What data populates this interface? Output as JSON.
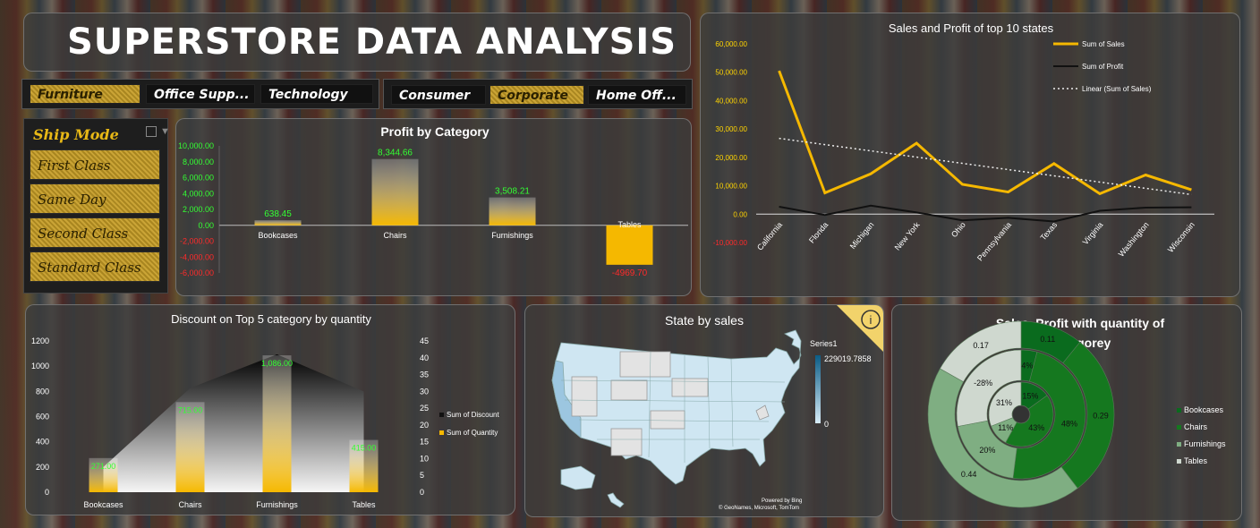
{
  "header": {
    "title": "SUPERSTORE DATA ANALYSIS"
  },
  "category_slicer": {
    "items": [
      {
        "label": "Furniture",
        "selected": true
      },
      {
        "label": "Office Supp...",
        "selected": false
      },
      {
        "label": "Technology",
        "selected": false
      }
    ]
  },
  "segment_slicer": {
    "items": [
      {
        "label": "Consumer",
        "selected": false
      },
      {
        "label": "Corporate",
        "selected": true
      },
      {
        "label": "Home Off...",
        "selected": false
      }
    ]
  },
  "ship_mode_slicer": {
    "title": "Ship Mode",
    "items": [
      "First Class",
      "Same Day",
      "Second Class",
      "Standard Class"
    ]
  },
  "colors": {
    "gold": "#f5b800",
    "bar_green_label": "#33ff33",
    "neg_red": "#ff2a2a",
    "dark_green": "#0a6b1e",
    "mid_green": "#3f8f4a",
    "light_green": "#7bb07f",
    "pale": "#d9d9d9"
  },
  "map": {
    "title": "State by sales",
    "legend_title": "Series1",
    "legend_max": "229019.7858",
    "legend_min": "0",
    "credit_1": "Powered by Bing",
    "credit_2": "© GeoNames, Microsoft, TomTom",
    "info_icon": "info-icon"
  },
  "chart_data": [
    {
      "id": "profit_by_category",
      "type": "bar",
      "title": "Profit by Category",
      "categories": [
        "Bookcases",
        "Chairs",
        "Furnishings",
        "Tables"
      ],
      "values": [
        638.45,
        8344.66,
        3508.21,
        -4969.7
      ],
      "value_labels": [
        "638.45",
        "8,344.66",
        "3,508.21",
        "-4969.70"
      ],
      "ylim": [
        -6000,
        10000
      ],
      "yticks": [
        "10,000.00",
        "8,000.00",
        "6,000.00",
        "4,000.00",
        "2,000.00",
        "0.00",
        "-2,000.00",
        "-4,000.00",
        "-6,000.00"
      ]
    },
    {
      "id": "sales_profit_top10",
      "type": "line",
      "title": "Sales and Profit of top 10 states",
      "categories": [
        "California",
        "Florida",
        "Michigan",
        "New York",
        "Ohio",
        "Pennsylvania",
        "Texas",
        "Virginia",
        "Washington",
        "Wisconsin"
      ],
      "series": [
        {
          "name": "Sum of Sales",
          "values": [
            50500,
            7500,
            14200,
            25000,
            10500,
            7800,
            17800,
            7200,
            13800,
            8600
          ]
        },
        {
          "name": "Sum of Profit",
          "values": [
            2600,
            -300,
            3000,
            600,
            -2200,
            -1300,
            -2600,
            1200,
            2300,
            2400
          ]
        },
        {
          "name": "Linear (Sum of Sales)",
          "values": [
            26700,
            24500,
            22300,
            20100,
            17900,
            15700,
            13500,
            11300,
            9100,
            6900
          ]
        }
      ],
      "ylim": [
        -10000,
        60000
      ],
      "yticks": [
        "60,000.00",
        "50,000.00",
        "40,000.00",
        "30,000.00",
        "20,000.00",
        "10,000.00",
        "0.00",
        "-10,000.00"
      ]
    },
    {
      "id": "discount_top5",
      "type": "bar",
      "title": "Discount on Top 5 category by quantity",
      "categories": [
        "Bookcases",
        "Chairs",
        "Furnishings",
        "Tables"
      ],
      "series": [
        {
          "name": "Sum of Discount",
          "values": [
            7.5,
            31,
            41,
            30
          ]
        },
        {
          "name": "Sum of Quantity",
          "values": [
            271,
            715,
            1086,
            415
          ]
        }
      ],
      "value_labels": [
        "271.00",
        "715.00",
        "1,086.00",
        "415.00"
      ],
      "ylim_left": [
        0,
        1200
      ],
      "ylim_right": [
        0,
        45
      ],
      "yticks_left": [
        "1200",
        "1000",
        "800",
        "600",
        "400",
        "200",
        "0"
      ],
      "yticks_right": [
        "45",
        "40",
        "35",
        "30",
        "25",
        "20",
        "15",
        "10",
        "5",
        "0"
      ]
    },
    {
      "id": "sales_profit_quantity",
      "type": "pie",
      "title": "Sales, Profit with quantity of Categorey",
      "categories": [
        "Bookcases",
        "Chairs",
        "Furnishings",
        "Tables"
      ],
      "rings": [
        {
          "name": "outer",
          "values": [
            0.11,
            0.29,
            0.44,
            0.17
          ],
          "labels": [
            "0.11",
            "0.29",
            "0.44",
            "0.17"
          ]
        },
        {
          "name": "middle",
          "values": [
            4,
            48,
            20,
            28
          ],
          "labels": [
            "4%",
            "48%",
            "20%",
            "-28%"
          ]
        },
        {
          "name": "inner",
          "values": [
            15,
            43,
            11,
            31
          ],
          "labels": [
            "15%",
            "43%",
            "11%",
            "31%"
          ]
        }
      ]
    }
  ]
}
